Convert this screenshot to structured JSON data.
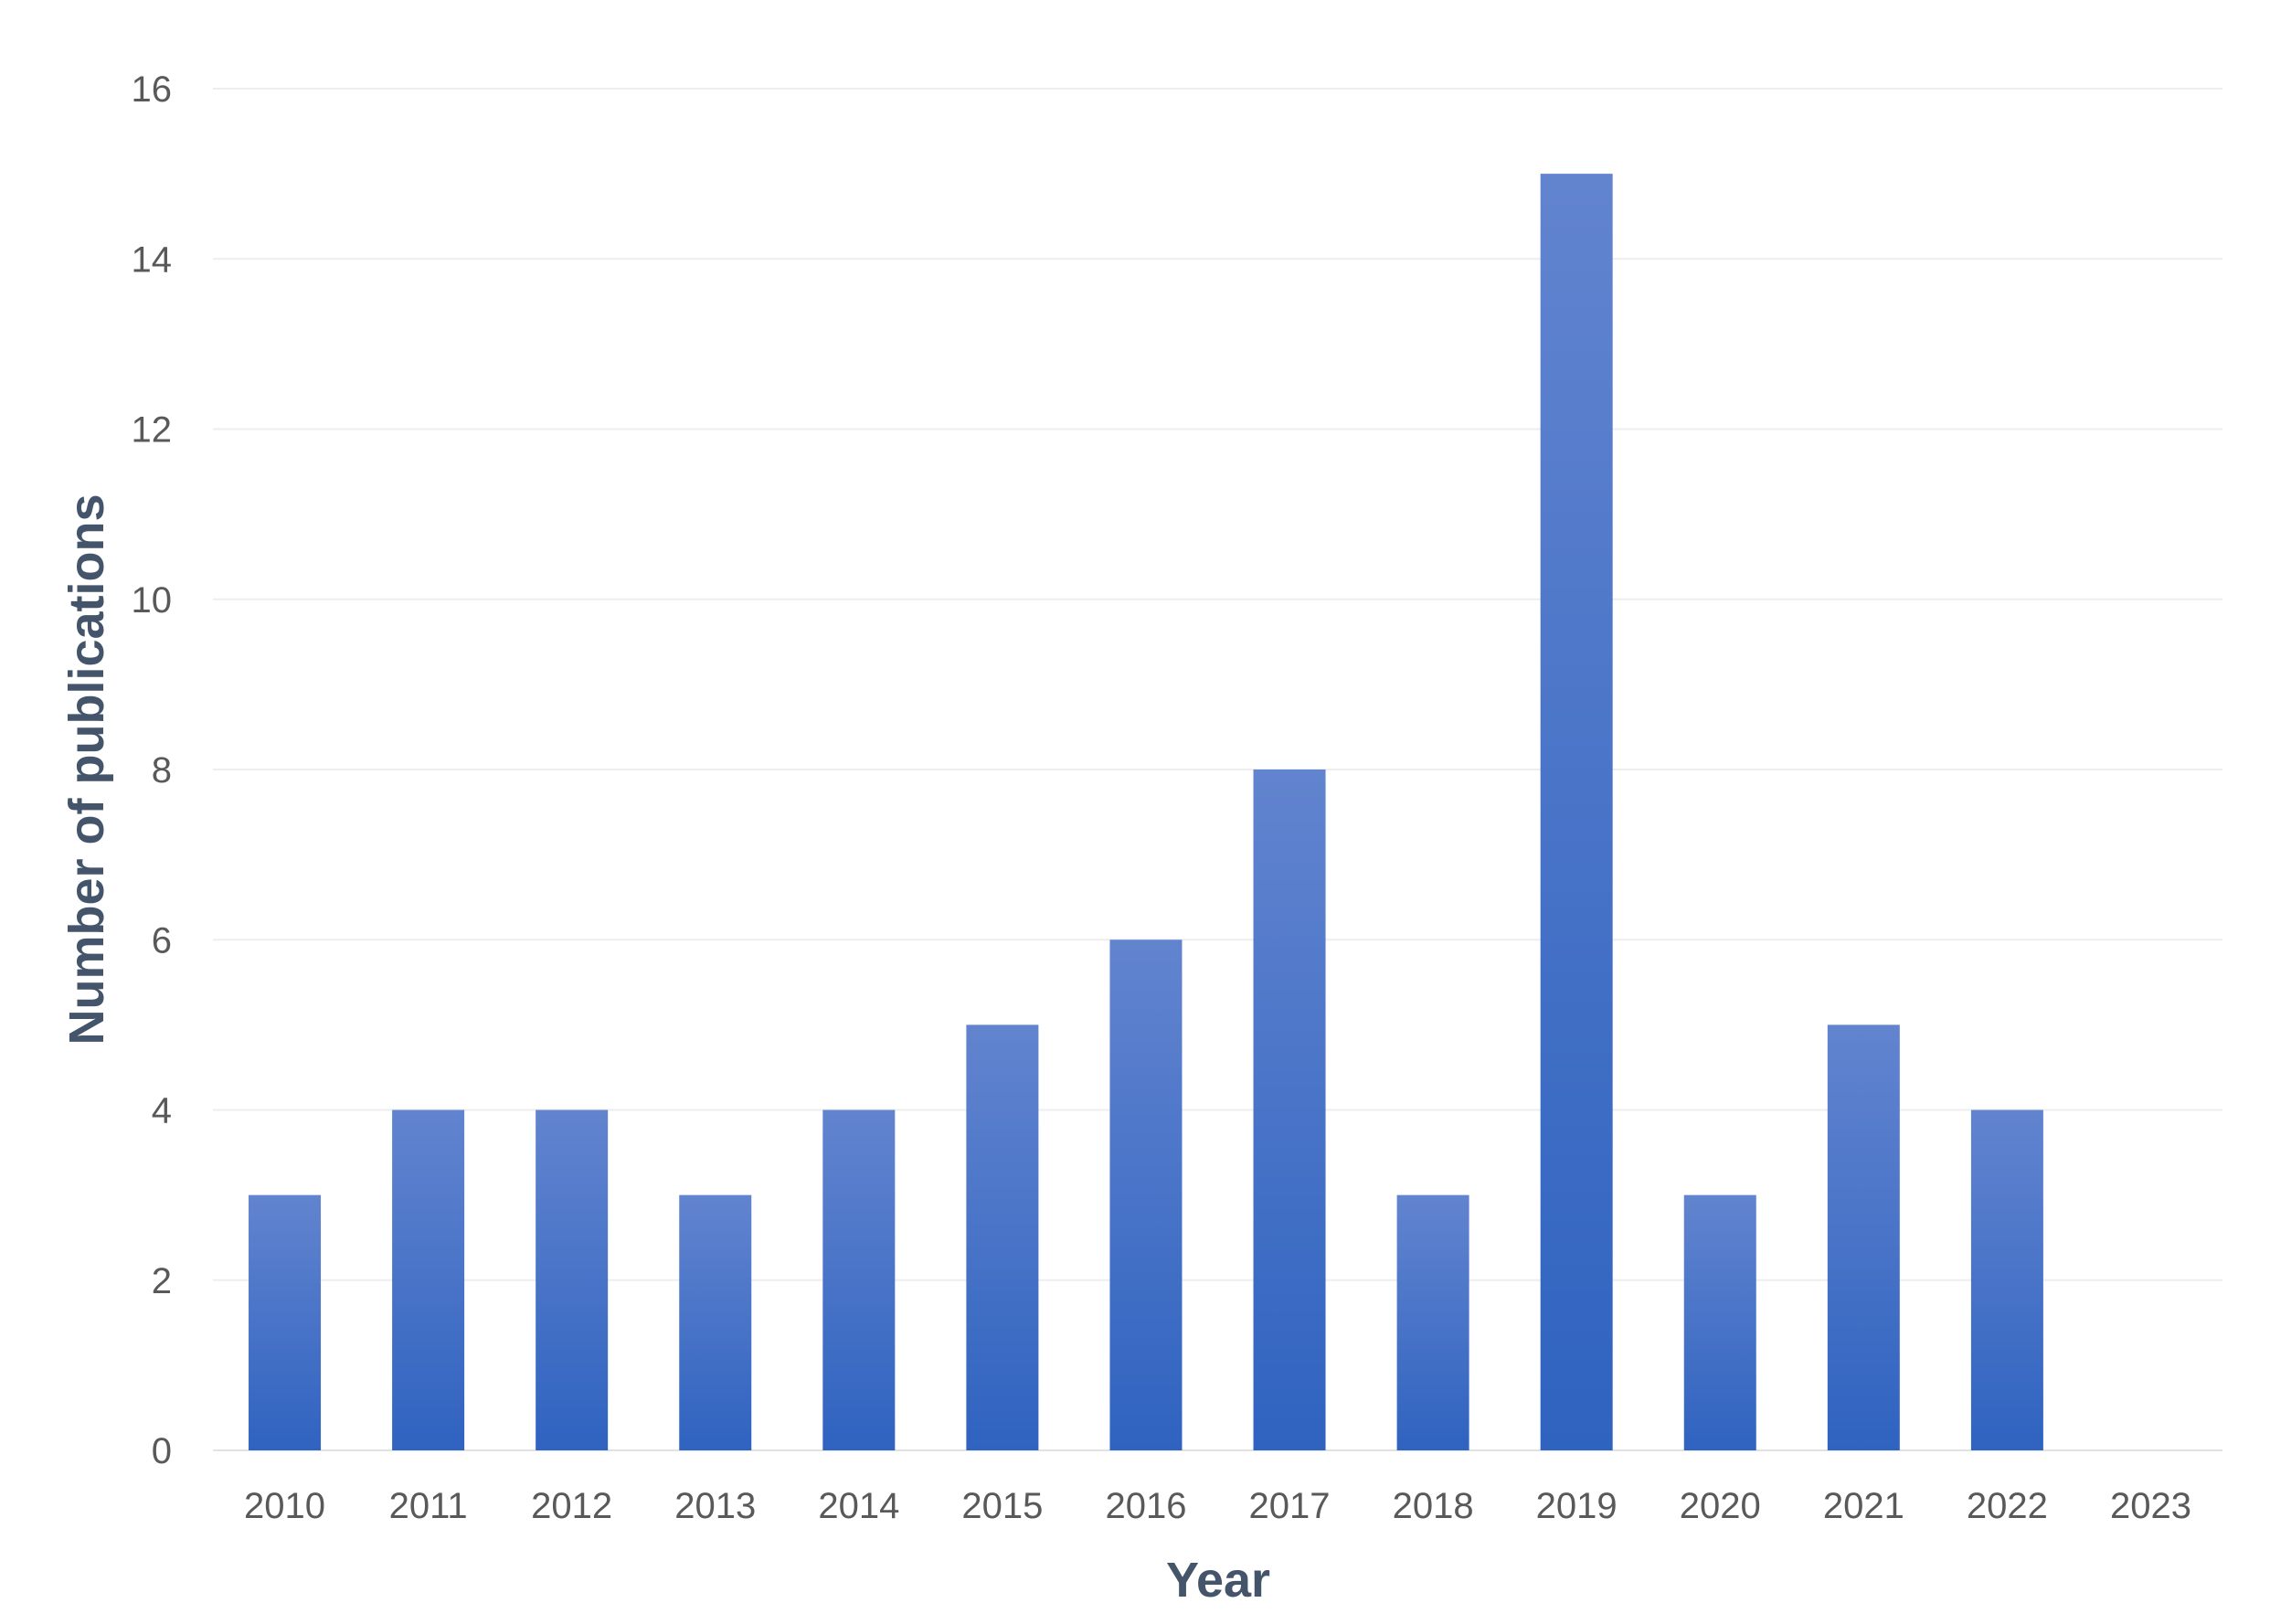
{
  "chart_data": {
    "type": "bar",
    "title": "",
    "xlabel": "Year",
    "ylabel": "Number of publications",
    "categories": [
      "2010",
      "2011",
      "2012",
      "2013",
      "2014",
      "2015",
      "2016",
      "2017",
      "2018",
      "2019",
      "2020",
      "2021",
      "2022",
      "2023"
    ],
    "values": [
      3,
      4,
      4,
      3,
      4,
      5,
      6,
      8,
      3,
      15,
      3,
      5,
      4,
      0
    ],
    "ylim": [
      0,
      16
    ],
    "yticks": [
      "0",
      "2",
      "4",
      "6",
      "8",
      "10",
      "12",
      "14",
      "16"
    ],
    "grid": true,
    "legend": "none",
    "bar_color_top": "#6284cf",
    "bar_color_bottom": "#2f63c0"
  }
}
